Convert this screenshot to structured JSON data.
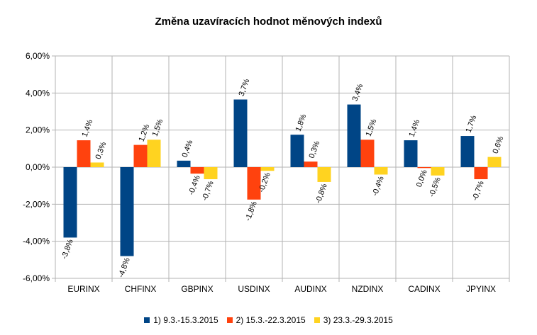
{
  "chart_data": {
    "type": "bar",
    "title": "Změna uzavíracích hodnot měnových indexů",
    "xlabel": "",
    "ylabel": "",
    "ylim": [
      -6,
      6
    ],
    "y_ticks": [
      "6,00%",
      "4,00%",
      "2,00%",
      "0,00%",
      "-2,00%",
      "-4,00%",
      "-6,00%"
    ],
    "y_tick_values": [
      6,
      4,
      2,
      0,
      -2,
      -4,
      -6
    ],
    "grid": "horizontal",
    "legend_position": "bottom",
    "categories": [
      "EURINX",
      "CHFINX",
      "GBPINX",
      "USDINX",
      "AUDINX",
      "NZDINX",
      "CADINX",
      "JPYINX"
    ],
    "series": [
      {
        "name": "1) 9.3.-15.3.2015",
        "color": "#004586",
        "values": [
          -3.8,
          -4.8,
          0.35,
          3.65,
          1.75,
          3.38,
          1.45,
          1.68
        ],
        "labels": [
          "-3,8%",
          "-4,8%",
          "0,4%",
          "3,7%",
          "1,8%",
          "3,4%",
          "1,4%",
          "1,7%"
        ]
      },
      {
        "name": "2) 15.3.-22.3.2015",
        "color": "#ff420e",
        "values": [
          1.45,
          1.2,
          -0.35,
          -1.75,
          0.3,
          1.48,
          -0.05,
          -0.65
        ],
        "labels": [
          "1,4%",
          "1,2%",
          "-0,4%",
          "-1,8%",
          "0,3%",
          "1,5%",
          "0,0%",
          "-0,7%"
        ]
      },
      {
        "name": "3) 23.3.-29.3.2015",
        "color": "#ffd320",
        "values": [
          0.25,
          1.48,
          -0.65,
          -0.2,
          -0.8,
          -0.4,
          -0.45,
          0.55
        ],
        "labels": [
          "0,3%",
          "1,5%",
          "-0,7%",
          "-0,2%",
          "-0,8%",
          "-0,4%",
          "-0,5%",
          "0,6%"
        ]
      }
    ]
  }
}
